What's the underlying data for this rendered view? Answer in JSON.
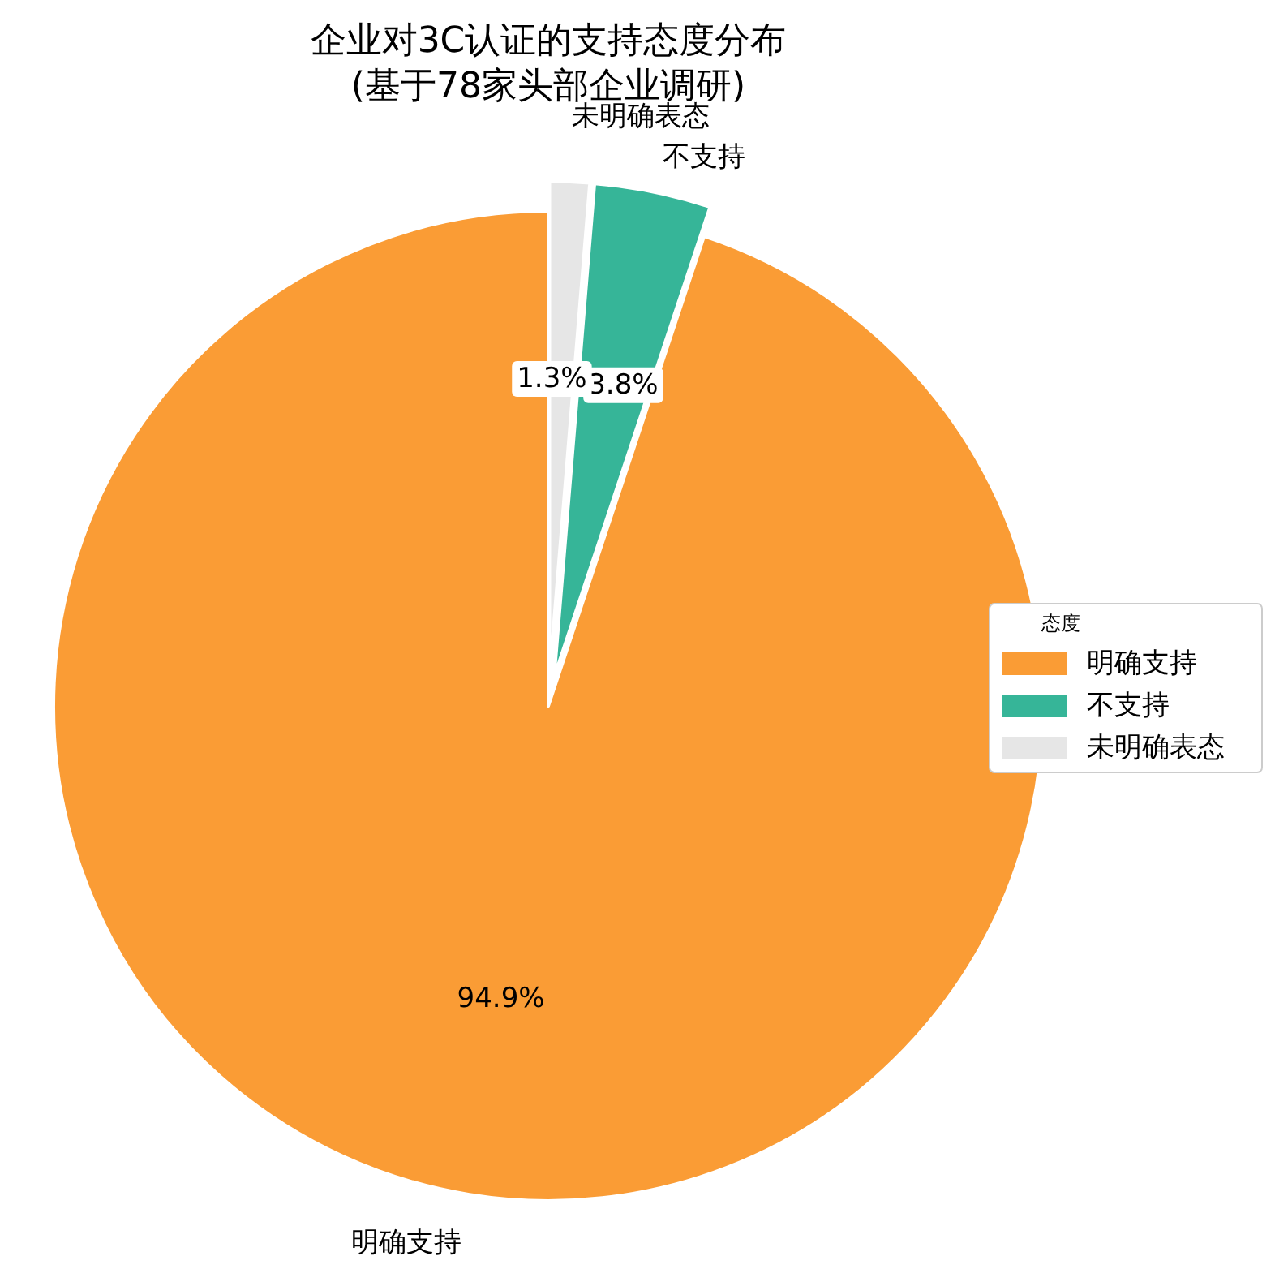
{
  "chart_data": {
    "type": "pie",
    "title": "企业对3C认证的支持态度分布",
    "subtitle": "(基于78家头部企业调研)",
    "categories": [
      "明确支持",
      "不支持",
      "未明确表态"
    ],
    "values": [
      94.9,
      3.8,
      1.3
    ],
    "colors": [
      "#fa9c35",
      "#36b598",
      "#e6e6e6"
    ],
    "value_labels": [
      "94.9%",
      "3.8%",
      "1.3%"
    ],
    "legend": "right",
    "legend_title": "态度"
  }
}
